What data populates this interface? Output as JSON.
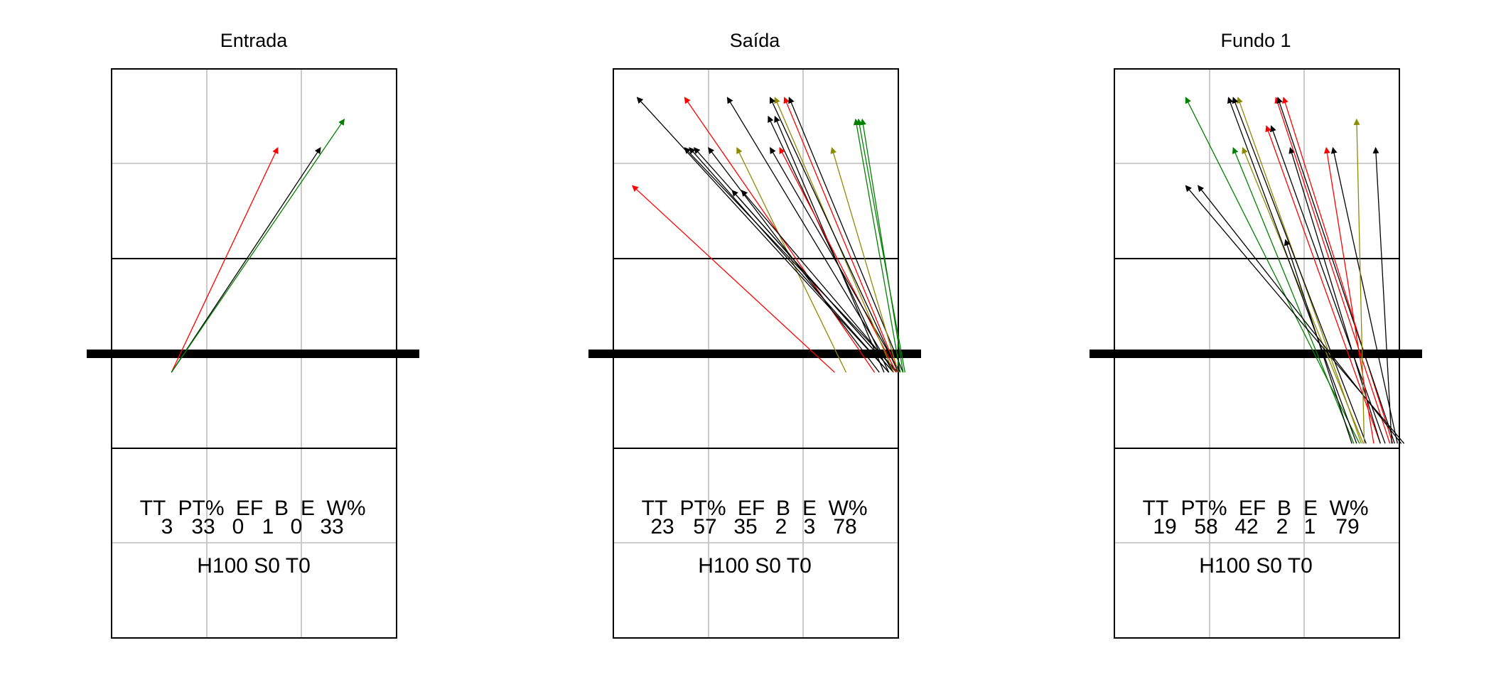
{
  "colors": {
    "black": "#000000",
    "red": "#ff0000",
    "green": "#008000",
    "olive": "#8b8b00",
    "grid": "#bebebe"
  },
  "stat_headers": [
    "TT",
    "PT%",
    "EF",
    "B",
    "E",
    "W%"
  ],
  "chart_data": [
    {
      "type": "arrow-map",
      "title": "Entrada",
      "stats": {
        "TT": "3",
        "PT%": "33",
        "EF": "0",
        "B": "1",
        "E": "0",
        "W%": "33"
      },
      "footer": "H100 S0 T0",
      "court_x_range": [
        0,
        3
      ],
      "court_y_range": [
        0,
        6
      ],
      "attacks": [
        {
          "from": [
            0.63,
            2.8
          ],
          "to": [
            1.75,
            5.17
          ],
          "color": "red"
        },
        {
          "from": [
            0.63,
            2.8
          ],
          "to": [
            2.2,
            5.17
          ],
          "color": "black"
        },
        {
          "from": [
            0.63,
            2.8
          ],
          "to": [
            2.45,
            5.47
          ],
          "color": "green"
        }
      ]
    },
    {
      "type": "arrow-map",
      "title": "Saída",
      "stats": {
        "TT": "23",
        "PT%": "57",
        "EF": "35",
        "B": "2",
        "E": "3",
        "W%": "78"
      },
      "footer": "H100 S0 T0",
      "court_x_range": [
        0,
        3
      ],
      "court_y_range": [
        0,
        6
      ],
      "attacks": [
        {
          "from": [
            2.33,
            2.8
          ],
          "to": [
            0.2,
            4.77
          ],
          "color": "red"
        },
        {
          "from": [
            2.45,
            2.8
          ],
          "to": [
            1.3,
            5.17
          ],
          "color": "olive"
        },
        {
          "from": [
            2.75,
            2.8
          ],
          "to": [
            0.75,
            5.7
          ],
          "color": "red"
        },
        {
          "from": [
            2.8,
            2.8
          ],
          "to": [
            1.0,
            5.17
          ],
          "color": "black"
        },
        {
          "from": [
            2.9,
            2.8
          ],
          "to": [
            0.8,
            5.17
          ],
          "color": "black"
        },
        {
          "from": [
            2.95,
            2.8
          ],
          "to": [
            0.85,
            5.17
          ],
          "color": "black"
        },
        {
          "from": [
            3.0,
            2.8
          ],
          "to": [
            0.75,
            5.17
          ],
          "color": "black"
        },
        {
          "from": [
            2.9,
            2.8
          ],
          "to": [
            0.25,
            5.7
          ],
          "color": "black"
        },
        {
          "from": [
            2.95,
            2.8
          ],
          "to": [
            1.25,
            4.72
          ],
          "color": "black"
        },
        {
          "from": [
            2.98,
            2.8
          ],
          "to": [
            1.35,
            4.72
          ],
          "color": "black"
        },
        {
          "from": [
            2.95,
            2.8
          ],
          "to": [
            1.2,
            5.7
          ],
          "color": "black"
        },
        {
          "from": [
            2.85,
            2.8
          ],
          "to": [
            1.7,
            5.5
          ],
          "color": "black"
        },
        {
          "from": [
            2.9,
            2.8
          ],
          "to": [
            1.63,
            5.5
          ],
          "color": "black"
        },
        {
          "from": [
            2.98,
            2.8
          ],
          "to": [
            1.75,
            5.17
          ],
          "color": "red"
        },
        {
          "from": [
            3.02,
            2.8
          ],
          "to": [
            1.65,
            5.17
          ],
          "color": "black"
        },
        {
          "from": [
            2.95,
            2.8
          ],
          "to": [
            1.7,
            5.7
          ],
          "color": "olive"
        },
        {
          "from": [
            3.0,
            2.8
          ],
          "to": [
            1.8,
            5.7
          ],
          "color": "red"
        },
        {
          "from": [
            3.05,
            2.8
          ],
          "to": [
            1.85,
            5.7
          ],
          "color": "black"
        },
        {
          "from": [
            3.0,
            2.8
          ],
          "to": [
            1.65,
            5.7
          ],
          "color": "black"
        },
        {
          "from": [
            3.0,
            2.8
          ],
          "to": [
            2.3,
            5.17
          ],
          "color": "olive"
        },
        {
          "from": [
            3.02,
            2.8
          ],
          "to": [
            2.55,
            5.47
          ],
          "color": "green"
        },
        {
          "from": [
            3.05,
            2.8
          ],
          "to": [
            2.62,
            5.47
          ],
          "color": "green"
        },
        {
          "from": [
            3.07,
            2.8
          ],
          "to": [
            2.58,
            5.47
          ],
          "color": "green"
        }
      ]
    },
    {
      "type": "arrow-map",
      "title": "Fundo 1",
      "stats": {
        "TT": "19",
        "PT%": "58",
        "EF": "42",
        "B": "2",
        "E": "1",
        "W%": "79"
      },
      "footer": "H100 S0 T0",
      "court_x_range": [
        0,
        3
      ],
      "court_y_range": [
        0,
        6
      ],
      "attacks": [
        {
          "from": [
            2.58,
            2.05
          ],
          "to": [
            0.75,
            5.7
          ],
          "color": "green"
        },
        {
          "from": [
            2.52,
            2.05
          ],
          "to": [
            1.25,
            5.17
          ],
          "color": "green"
        },
        {
          "from": [
            2.62,
            2.05
          ],
          "to": [
            1.35,
            5.17
          ],
          "color": "olive"
        },
        {
          "from": [
            2.55,
            2.05
          ],
          "to": [
            1.2,
            5.7
          ],
          "color": "black"
        },
        {
          "from": [
            2.6,
            2.05
          ],
          "to": [
            1.3,
            5.7
          ],
          "color": "olive"
        },
        {
          "from": [
            2.65,
            2.05
          ],
          "to": [
            1.25,
            5.7
          ],
          "color": "black"
        },
        {
          "from": [
            2.5,
            2.05
          ],
          "to": [
            1.8,
            4.2
          ],
          "color": "black"
        },
        {
          "from": [
            2.8,
            2.05
          ],
          "to": [
            1.6,
            5.4
          ],
          "color": "red"
        },
        {
          "from": [
            2.85,
            2.05
          ],
          "to": [
            1.65,
            5.4
          ],
          "color": "black"
        },
        {
          "from": [
            2.8,
            2.05
          ],
          "to": [
            1.85,
            5.17
          ],
          "color": "black"
        },
        {
          "from": [
            2.9,
            2.05
          ],
          "to": [
            1.7,
            5.7
          ],
          "color": "red"
        },
        {
          "from": [
            2.93,
            2.05
          ],
          "to": [
            1.78,
            5.7
          ],
          "color": "red"
        },
        {
          "from": [
            2.95,
            2.05
          ],
          "to": [
            1.72,
            5.7
          ],
          "color": "black"
        },
        {
          "from": [
            3.05,
            2.05
          ],
          "to": [
            0.75,
            4.77
          ],
          "color": "black"
        },
        {
          "from": [
            3.02,
            2.05
          ],
          "to": [
            0.88,
            4.77
          ],
          "color": "black"
        },
        {
          "from": [
            2.73,
            2.05
          ],
          "to": [
            2.23,
            5.17
          ],
          "color": "red"
        },
        {
          "from": [
            2.98,
            2.05
          ],
          "to": [
            2.3,
            5.17
          ],
          "color": "black"
        },
        {
          "from": [
            2.63,
            2.05
          ],
          "to": [
            2.55,
            5.47
          ],
          "color": "olive"
        },
        {
          "from": [
            2.92,
            2.05
          ],
          "to": [
            2.75,
            5.17
          ],
          "color": "black"
        }
      ]
    }
  ]
}
